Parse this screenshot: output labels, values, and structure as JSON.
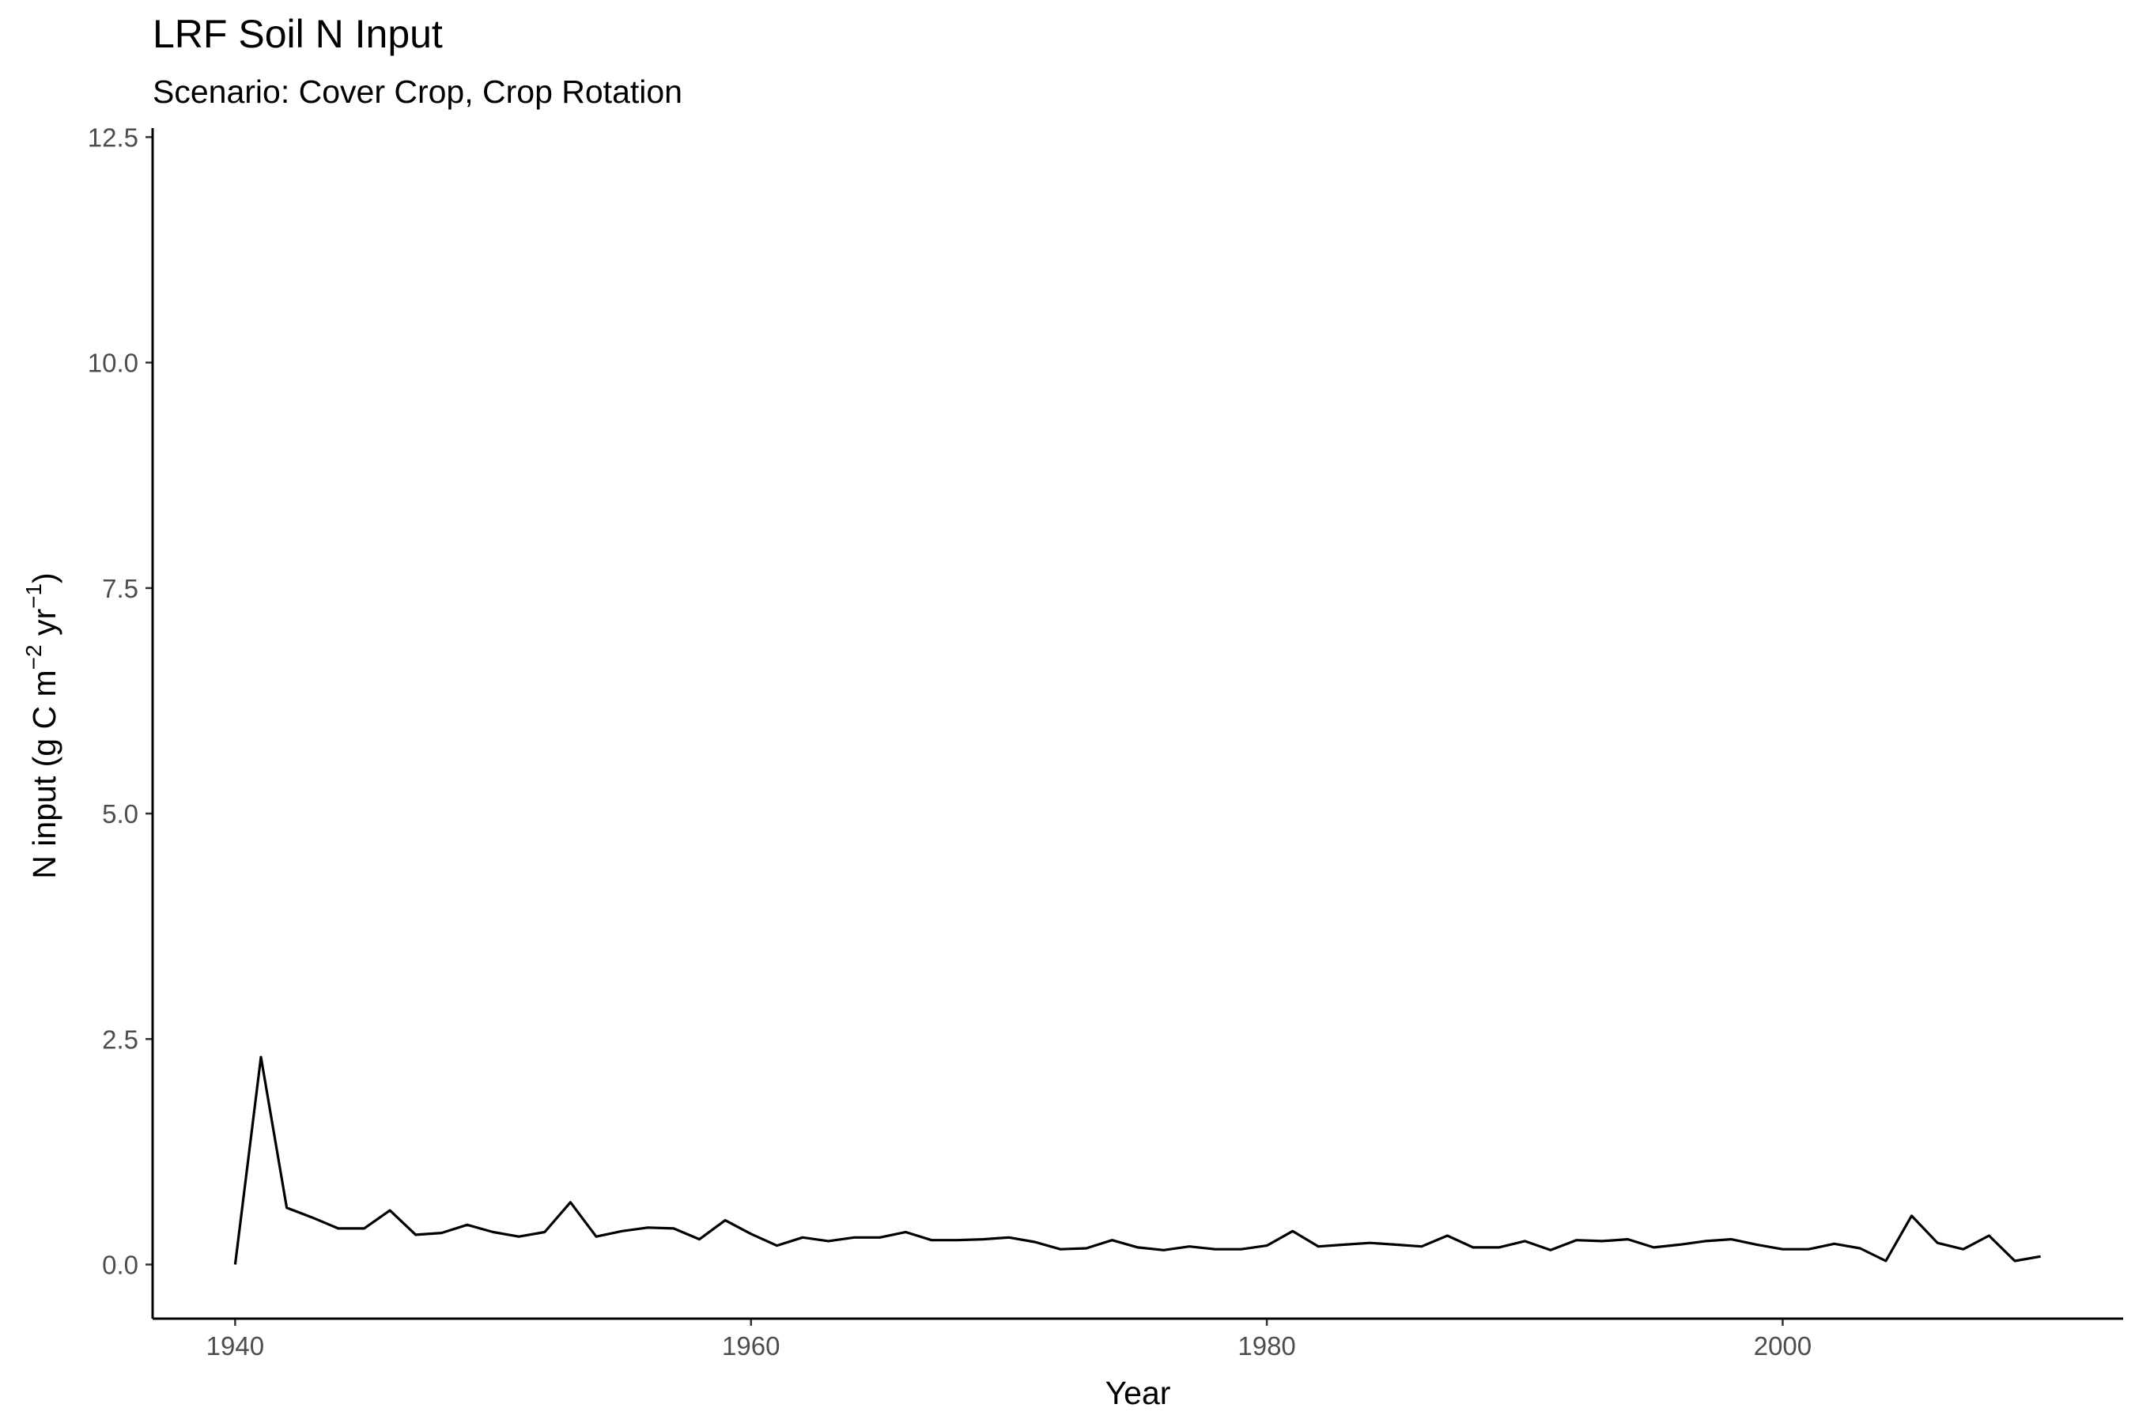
{
  "chart_data": {
    "type": "line",
    "title": "LRF Soil N Input",
    "subtitle": "Scenario: Cover Crop, Crop Rotation",
    "xlabel": "Year",
    "ylabel": {
      "prefix": "N input (g C m",
      "sup1": "−2",
      "middle": " yr",
      "sup2": "−1",
      "suffix": ")"
    },
    "xlim": [
      1936.8,
      2013.2
    ],
    "ylim": [
      -0.6,
      12.6
    ],
    "x_ticks": [
      1940,
      1960,
      1980,
      2000
    ],
    "x_tick_labels": [
      "1940",
      "1960",
      "1980",
      "2000"
    ],
    "y_ticks": [
      0,
      2.5,
      5,
      7.5,
      10,
      12.5
    ],
    "y_tick_labels": [
      "0.0",
      "2.5",
      "5.0",
      "7.5",
      "10.0",
      "12.5"
    ],
    "grid": false,
    "line_color": "#000000",
    "series": [
      {
        "x": [
          1940,
          1941,
          1942,
          1943,
          1944,
          1945,
          1946,
          1947,
          1948,
          1949,
          1950,
          1951,
          1952,
          1953,
          1954,
          1955,
          1956,
          1957,
          1958,
          1959,
          1960,
          1961,
          1962,
          1963,
          1964,
          1965,
          1966,
          1967,
          1968,
          1969,
          1970,
          1971,
          1972,
          1973,
          1974,
          1975,
          1976,
          1977,
          1978,
          1979,
          1980,
          1981,
          1982,
          1983,
          1984,
          1985,
          1986,
          1987,
          1988,
          1989,
          1990,
          1991,
          1992,
          1993,
          1994,
          1995,
          1996,
          1997,
          1998,
          1999,
          2000,
          2001,
          2002,
          2003,
          2004,
          2005,
          2006,
          2007,
          2008,
          2009,
          2010
        ],
        "values": [
          0.0,
          2.3,
          0.63,
          0.52,
          0.4,
          0.4,
          0.6,
          0.33,
          0.35,
          0.44,
          0.36,
          0.31,
          0.36,
          0.69,
          0.31,
          0.37,
          0.41,
          0.4,
          0.28,
          0.49,
          0.34,
          0.21,
          0.3,
          0.26,
          0.3,
          0.3,
          0.36,
          0.27,
          0.27,
          0.28,
          0.3,
          0.25,
          0.17,
          0.18,
          0.27,
          0.19,
          0.16,
          0.2,
          0.17,
          0.17,
          0.21,
          0.37,
          0.2,
          0.22,
          0.24,
          0.22,
          0.2,
          0.32,
          0.19,
          0.19,
          0.26,
          0.16,
          0.27,
          0.26,
          0.28,
          0.19,
          0.22,
          0.26,
          0.28,
          0.22,
          0.17,
          0.17,
          0.23,
          0.18,
          0.04,
          0.54,
          0.24,
          0.17,
          0.32,
          0.04,
          0.09
        ]
      }
    ]
  }
}
